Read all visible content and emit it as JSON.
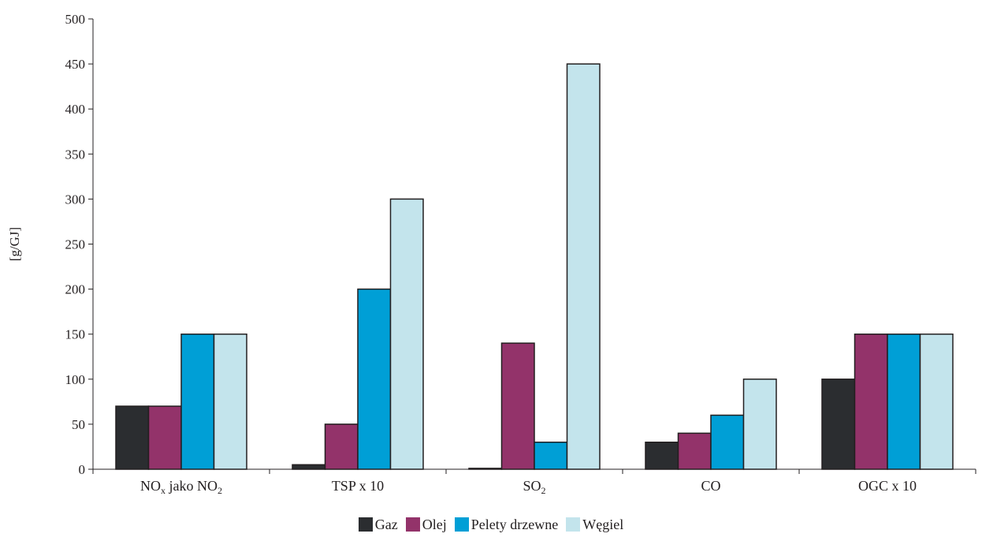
{
  "chart_data": {
    "type": "bar",
    "ylabel": "[g/GJ]",
    "ylim": [
      0,
      500
    ],
    "yticks": [
      0,
      50,
      100,
      150,
      200,
      250,
      300,
      350,
      400,
      450,
      500
    ],
    "grid": false,
    "legend_position": "bottom",
    "categories": [
      {
        "text": "NO",
        "sub": "x",
        "text2": " jako NO",
        "sub2": "2"
      },
      {
        "text": "TSP x 10"
      },
      {
        "text": "SO",
        "sub": "2"
      },
      {
        "text": "CO"
      },
      {
        "text": "OGC x 10"
      }
    ],
    "series": [
      {
        "name": "Gaz",
        "color": "#2b2d30",
        "values": [
          70,
          5,
          1,
          30,
          100
        ]
      },
      {
        "name": "Olej",
        "color": "#93336a",
        "values": [
          70,
          50,
          140,
          40,
          150
        ]
      },
      {
        "name": "Pelety drzewne",
        "color": "#009fd6",
        "values": [
          150,
          200,
          30,
          60,
          150
        ]
      },
      {
        "name": "Węgiel",
        "color": "#c3e4ec",
        "values": [
          150,
          300,
          450,
          100,
          150
        ]
      }
    ]
  }
}
